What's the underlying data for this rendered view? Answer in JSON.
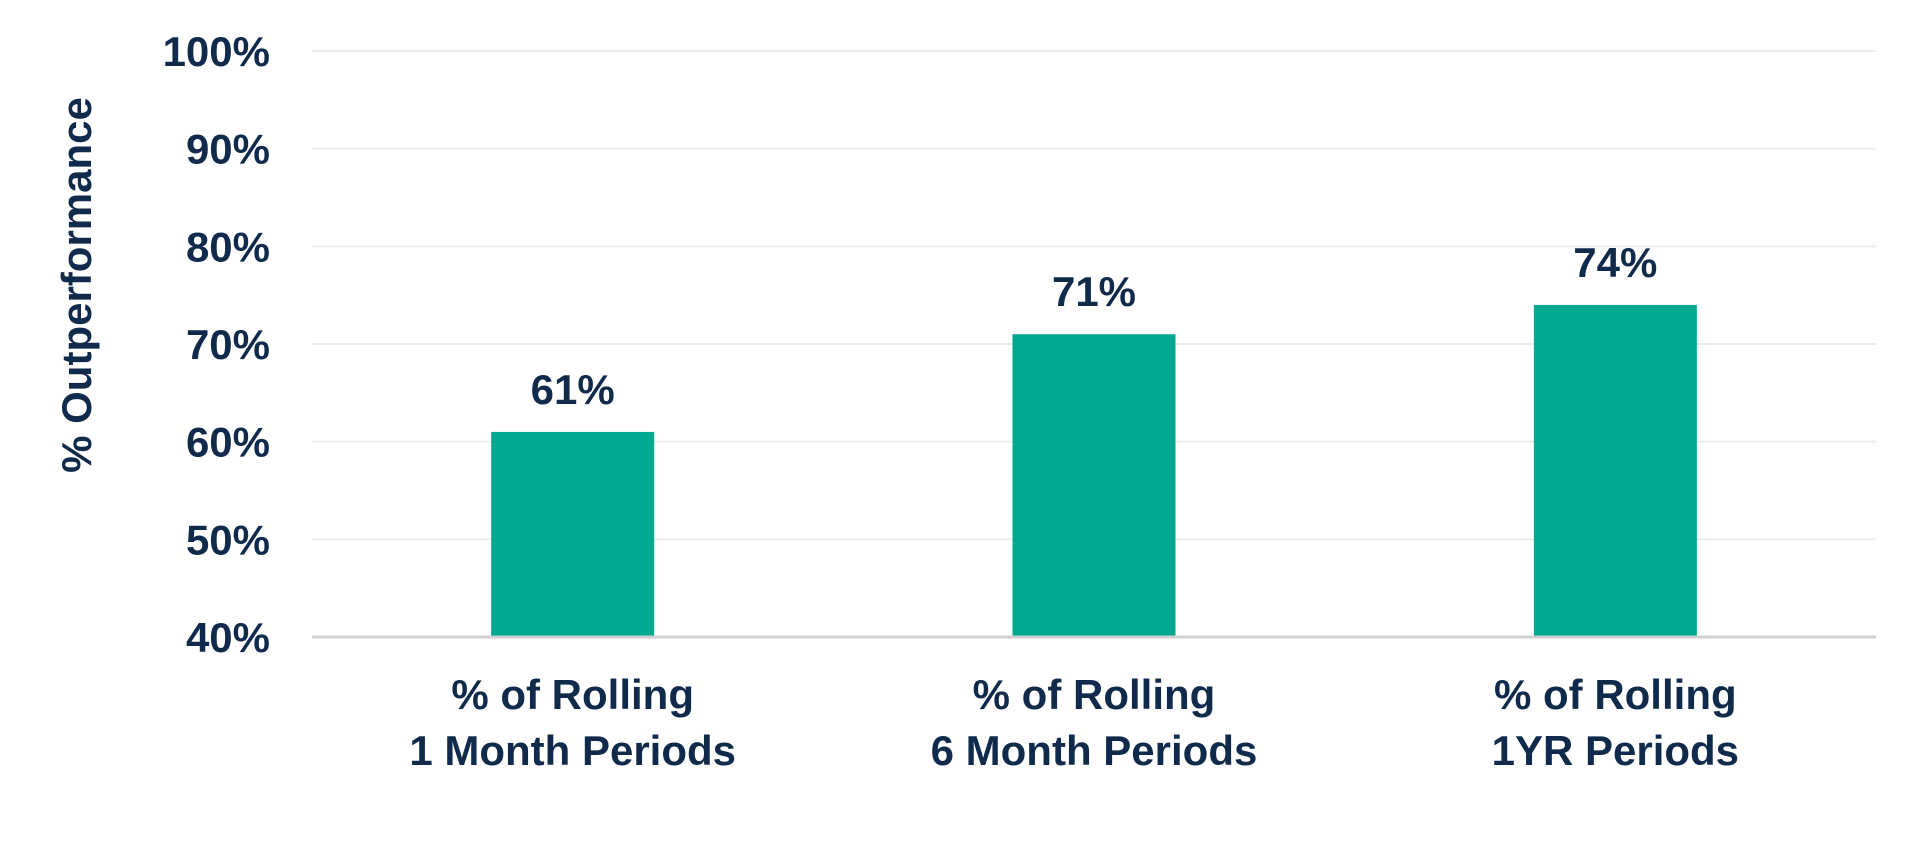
{
  "chart_data": {
    "type": "bar",
    "categories": [
      [
        "% of Rolling",
        "1 Month Periods"
      ],
      [
        "% of Rolling",
        "6 Month Periods"
      ],
      [
        "% of Rolling",
        "1YR Periods"
      ]
    ],
    "values": [
      61,
      71,
      74
    ],
    "data_labels": [
      "61%",
      "71%",
      "74%"
    ],
    "ylabel": "% Outperformance",
    "ylim": [
      40,
      100
    ],
    "yticks": [
      40,
      50,
      60,
      70,
      80,
      90,
      100
    ],
    "ytick_labels": [
      "40%",
      "50%",
      "60%",
      "70%",
      "80%",
      "90%",
      "100%"
    ],
    "grid": true,
    "bar_color": "#00a98f",
    "gridline_color": "#ececec",
    "axis_color": "#d0d0d0",
    "text_color": "#102a4c"
  }
}
